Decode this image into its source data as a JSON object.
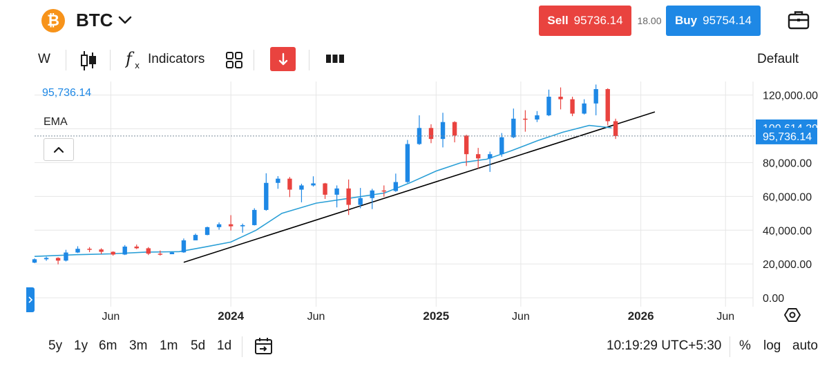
{
  "header": {
    "logo_glyph": "₿",
    "symbol": "BTC",
    "sell_label": "Sell",
    "sell_price": "95736.14",
    "spread": "18.00",
    "buy_label": "Buy",
    "buy_price": "95754.14"
  },
  "toolbar": {
    "interval": "W",
    "indicators_label": "Indicators",
    "template": "Default"
  },
  "chart_overlay": {
    "last_price": "95,736.14",
    "indicator_name": "EMA"
  },
  "colors": {
    "up": "#1e88e5",
    "down": "#e9433f",
    "ema": "#2a9fd6",
    "trendline": "#000000",
    "grid": "#e6e6e6"
  },
  "chart_data": {
    "type": "candlestick",
    "y_axis": {
      "ticks": [
        0,
        20000,
        40000,
        60000,
        80000,
        100000,
        120000
      ],
      "tick_labels": [
        "0.00",
        "20,000.00",
        "40,000.00",
        "60,000.00",
        "80,000.00",
        "",
        "120,000.00"
      ],
      "range": [
        -2000,
        128000
      ]
    },
    "x_axis": {
      "labels": [
        {
          "text": "Jun",
          "date": "2023-06-01",
          "bold": false
        },
        {
          "text": "2024",
          "date": "2024-01-01",
          "bold": true
        },
        {
          "text": "Jun",
          "date": "2024-06-01",
          "bold": false
        },
        {
          "text": "2025",
          "date": "2025-01-01",
          "bold": true
        },
        {
          "text": "Jun",
          "date": "2025-06-01",
          "bold": false
        },
        {
          "text": "2026",
          "date": "2026-01-01",
          "bold": true
        },
        {
          "text": "Jun",
          "date": "2026-06-01",
          "bold": false
        }
      ],
      "range": [
        "2023-01-16",
        "2026-07-20"
      ]
    },
    "price_markers": [
      {
        "label": "100,614.29",
        "value": 100614.29,
        "series": "EMA"
      },
      {
        "label": "95,736.14",
        "value": 95736.14,
        "series": "last"
      }
    ],
    "trendline": {
      "start": [
        "2023-10-09",
        21000
      ],
      "end": [
        "2026-01-26",
        110000
      ]
    },
    "ema_points": [
      [
        "2023-01-16",
        24500
      ],
      [
        "2023-04-01",
        25500
      ],
      [
        "2023-06-01",
        26000
      ],
      [
        "2023-08-01",
        27000
      ],
      [
        "2023-10-01",
        27300
      ],
      [
        "2023-11-15",
        30000
      ],
      [
        "2024-01-01",
        33000
      ],
      [
        "2024-02-15",
        40000
      ],
      [
        "2024-04-01",
        50000
      ],
      [
        "2024-06-01",
        56000
      ],
      [
        "2024-08-01",
        59000
      ],
      [
        "2024-10-01",
        62000
      ],
      [
        "2024-11-15",
        68000
      ],
      [
        "2025-01-01",
        75000
      ],
      [
        "2025-02-15",
        80000
      ],
      [
        "2025-04-01",
        82000
      ],
      [
        "2025-05-15",
        87000
      ],
      [
        "2025-07-01",
        93000
      ],
      [
        "2025-08-15",
        98000
      ],
      [
        "2025-10-01",
        102000
      ],
      [
        "2025-11-10",
        100614
      ]
    ],
    "candles": [
      [
        "2023-01-16",
        20800,
        22800,
        20500,
        23300
      ],
      [
        "2023-02-06",
        22800,
        23600,
        21900,
        24300
      ],
      [
        "2023-02-27",
        23600,
        22000,
        19800,
        24000
      ],
      [
        "2023-03-13",
        22000,
        26800,
        21500,
        28400
      ],
      [
        "2023-04-03",
        26800,
        29000,
        26500,
        30500
      ],
      [
        "2023-04-24",
        29000,
        28600,
        27000,
        30000
      ],
      [
        "2023-05-15",
        28600,
        27200,
        25800,
        29300
      ],
      [
        "2023-06-05",
        27200,
        25600,
        24900,
        27500
      ],
      [
        "2023-06-26",
        25600,
        30300,
        25300,
        31200
      ],
      [
        "2023-07-17",
        30300,
        29300,
        28800,
        31500
      ],
      [
        "2023-08-07",
        29300,
        26100,
        25300,
        30000
      ],
      [
        "2023-08-28",
        26100,
        25800,
        25000,
        28000
      ],
      [
        "2023-09-18",
        25800,
        26900,
        25800,
        27400
      ],
      [
        "2023-10-09",
        26900,
        34000,
        26600,
        35100
      ],
      [
        "2023-10-30",
        34000,
        37200,
        34000,
        38000
      ],
      [
        "2023-11-20",
        37200,
        41800,
        37000,
        42100
      ],
      [
        "2023-12-11",
        41800,
        43500,
        40300,
        44600
      ],
      [
        "2024-01-01",
        43500,
        42300,
        39800,
        48900
      ],
      [
        "2024-01-22",
        42300,
        43000,
        38500,
        43900
      ],
      [
        "2024-02-12",
        43000,
        52000,
        42800,
        53000
      ],
      [
        "2024-03-04",
        52000,
        68000,
        51500,
        73700
      ],
      [
        "2024-03-25",
        68000,
        70500,
        64500,
        72000
      ],
      [
        "2024-04-15",
        70500,
        64000,
        59600,
        71500
      ],
      [
        "2024-05-06",
        64000,
        66500,
        56500,
        67500
      ],
      [
        "2024-05-27",
        66500,
        67700,
        65800,
        71900
      ],
      [
        "2024-06-17",
        67700,
        61000,
        58500,
        68000
      ],
      [
        "2024-07-08",
        61000,
        64700,
        53500,
        66500
      ],
      [
        "2024-07-29",
        64700,
        55000,
        49000,
        70000
      ],
      [
        "2024-08-19",
        55000,
        59000,
        53000,
        65000
      ],
      [
        "2024-09-09",
        59000,
        63500,
        52500,
        64500
      ],
      [
        "2024-09-30",
        63500,
        63200,
        59800,
        66500
      ],
      [
        "2024-10-21",
        63200,
        68500,
        62700,
        73500
      ],
      [
        "2024-11-11",
        68500,
        91000,
        68000,
        93400
      ],
      [
        "2024-12-02",
        91000,
        100500,
        90500,
        108000
      ],
      [
        "2024-12-23",
        100500,
        94000,
        91500,
        102700
      ],
      [
        "2025-01-13",
        94000,
        104000,
        89000,
        109500
      ],
      [
        "2025-02-03",
        104000,
        96000,
        92000,
        104500
      ],
      [
        "2025-02-24",
        96000,
        85000,
        78000,
        96500
      ],
      [
        "2025-03-17",
        85000,
        82500,
        76500,
        88700
      ],
      [
        "2025-04-07",
        82500,
        85000,
        74500,
        86500
      ],
      [
        "2025-04-28",
        85000,
        95000,
        83500,
        97500
      ],
      [
        "2025-05-19",
        95000,
        106000,
        94500,
        112000
      ],
      [
        "2025-06-09",
        106000,
        105500,
        98300,
        111000
      ],
      [
        "2025-06-30",
        105500,
        108000,
        104000,
        110500
      ],
      [
        "2025-07-21",
        108000,
        119000,
        107500,
        123200
      ],
      [
        "2025-08-11",
        119000,
        117500,
        111500,
        124500
      ],
      [
        "2025-09-01",
        117500,
        109000,
        107500,
        119000
      ],
      [
        "2025-09-22",
        109000,
        115000,
        108500,
        117500
      ],
      [
        "2025-10-13",
        115000,
        123500,
        108000,
        126200
      ],
      [
        "2025-11-03",
        123500,
        104500,
        102000,
        124000
      ],
      [
        "2025-11-17",
        104500,
        95736,
        94000,
        106000
      ]
    ]
  },
  "bottom_bar": {
    "ranges": [
      "5y",
      "1y",
      "6m",
      "3m",
      "1m",
      "5d",
      "1d"
    ],
    "time": "10:19:29 UTC+5:30",
    "percent_label": "%",
    "log_label": "log",
    "auto_label": "auto"
  }
}
